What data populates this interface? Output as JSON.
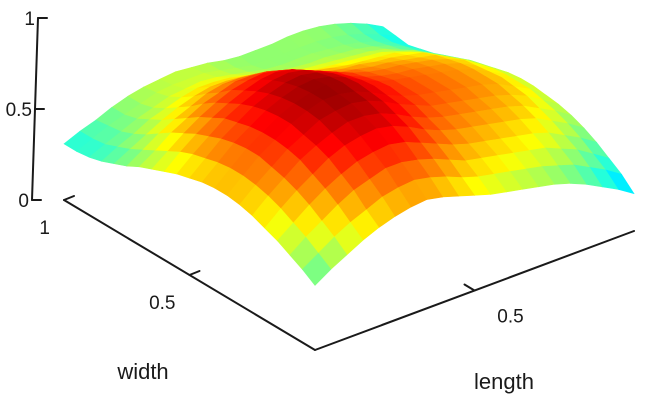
{
  "chart_data": {
    "type": "surface",
    "title": "",
    "xlabel": "length",
    "ylabel": "width",
    "zlabel": "",
    "xlim": [
      0,
      1
    ],
    "ylim": [
      0,
      1
    ],
    "zlim": [
      0,
      1
    ],
    "x_ticks": [
      {
        "value": 0.5,
        "label": "0.5"
      }
    ],
    "y_ticks": [
      {
        "value": 0.5,
        "label": "0.5"
      },
      {
        "value": 1,
        "label": "1"
      }
    ],
    "z_ticks": [
      {
        "value": 0,
        "label": "0"
      },
      {
        "value": 0.5,
        "label": "0.5"
      },
      {
        "value": 1,
        "label": "1"
      }
    ],
    "colormap": "jet",
    "grid": false,
    "surface": {
      "x": [
        0,
        0.05,
        0.1,
        0.15,
        0.2,
        0.25,
        0.3,
        0.35,
        0.4,
        0.45,
        0.5,
        0.55,
        0.6,
        0.65,
        0.7,
        0.75,
        0.8,
        0.85,
        0.9,
        0.95,
        1
      ],
      "y": [
        0,
        0.05,
        0.1,
        0.15,
        0.2,
        0.25,
        0.3,
        0.35,
        0.4,
        0.45,
        0.5,
        0.55,
        0.6,
        0.65,
        0.7,
        0.75,
        0.8,
        0.85,
        0.9,
        0.95,
        1
      ],
      "z": [
        [
          0.38,
          0.44,
          0.49,
          0.54,
          0.58,
          0.61,
          0.63,
          0.64,
          0.62,
          0.59,
          0.56,
          0.53,
          0.51,
          0.49,
          0.47,
          0.45,
          0.42,
          0.38,
          0.33,
          0.28,
          0.22
        ],
        [
          0.43,
          0.49,
          0.55,
          0.6,
          0.64,
          0.68,
          0.7,
          0.71,
          0.69,
          0.66,
          0.62,
          0.59,
          0.57,
          0.55,
          0.53,
          0.51,
          0.48,
          0.45,
          0.4,
          0.35,
          0.29
        ],
        [
          0.47,
          0.54,
          0.6,
          0.66,
          0.71,
          0.74,
          0.77,
          0.77,
          0.75,
          0.72,
          0.68,
          0.64,
          0.62,
          0.6,
          0.58,
          0.56,
          0.54,
          0.5,
          0.46,
          0.4,
          0.34
        ],
        [
          0.51,
          0.58,
          0.65,
          0.71,
          0.76,
          0.8,
          0.82,
          0.83,
          0.81,
          0.77,
          0.73,
          0.69,
          0.66,
          0.64,
          0.62,
          0.6,
          0.58,
          0.55,
          0.5,
          0.45,
          0.39
        ],
        [
          0.54,
          0.62,
          0.69,
          0.75,
          0.81,
          0.85,
          0.87,
          0.88,
          0.86,
          0.82,
          0.77,
          0.73,
          0.7,
          0.68,
          0.66,
          0.64,
          0.62,
          0.59,
          0.54,
          0.49,
          0.43
        ],
        [
          0.57,
          0.65,
          0.72,
          0.79,
          0.84,
          0.88,
          0.91,
          0.91,
          0.89,
          0.85,
          0.8,
          0.76,
          0.73,
          0.71,
          0.69,
          0.67,
          0.65,
          0.62,
          0.57,
          0.52,
          0.46
        ],
        [
          0.59,
          0.67,
          0.74,
          0.81,
          0.86,
          0.91,
          0.93,
          0.94,
          0.92,
          0.88,
          0.83,
          0.79,
          0.75,
          0.73,
          0.71,
          0.69,
          0.67,
          0.64,
          0.6,
          0.54,
          0.48
        ],
        [
          0.6,
          0.68,
          0.76,
          0.82,
          0.88,
          0.92,
          0.95,
          0.95,
          0.93,
          0.89,
          0.84,
          0.8,
          0.77,
          0.75,
          0.73,
          0.71,
          0.69,
          0.66,
          0.61,
          0.56,
          0.49
        ],
        [
          0.6,
          0.68,
          0.76,
          0.82,
          0.88,
          0.92,
          0.95,
          0.96,
          0.94,
          0.9,
          0.85,
          0.81,
          0.77,
          0.75,
          0.73,
          0.71,
          0.69,
          0.66,
          0.62,
          0.56,
          0.5
        ],
        [
          0.59,
          0.67,
          0.75,
          0.81,
          0.87,
          0.91,
          0.94,
          0.95,
          0.93,
          0.89,
          0.84,
          0.8,
          0.77,
          0.75,
          0.73,
          0.71,
          0.69,
          0.66,
          0.61,
          0.56,
          0.5
        ],
        [
          0.57,
          0.65,
          0.73,
          0.79,
          0.85,
          0.89,
          0.92,
          0.93,
          0.91,
          0.87,
          0.82,
          0.78,
          0.75,
          0.73,
          0.72,
          0.7,
          0.68,
          0.65,
          0.6,
          0.55,
          0.49
        ],
        [
          0.55,
          0.63,
          0.7,
          0.77,
          0.82,
          0.86,
          0.89,
          0.9,
          0.88,
          0.84,
          0.8,
          0.76,
          0.73,
          0.71,
          0.7,
          0.68,
          0.66,
          0.63,
          0.59,
          0.53,
          0.47
        ],
        [
          0.52,
          0.6,
          0.67,
          0.73,
          0.78,
          0.82,
          0.85,
          0.86,
          0.84,
          0.8,
          0.76,
          0.72,
          0.7,
          0.68,
          0.67,
          0.65,
          0.63,
          0.61,
          0.56,
          0.51,
          0.45
        ],
        [
          0.49,
          0.56,
          0.63,
          0.69,
          0.74,
          0.78,
          0.8,
          0.81,
          0.79,
          0.76,
          0.72,
          0.68,
          0.66,
          0.65,
          0.63,
          0.62,
          0.6,
          0.58,
          0.53,
          0.48,
          0.43
        ],
        [
          0.46,
          0.52,
          0.59,
          0.64,
          0.69,
          0.72,
          0.75,
          0.75,
          0.74,
          0.71,
          0.67,
          0.64,
          0.62,
          0.6,
          0.59,
          0.58,
          0.57,
          0.54,
          0.5,
          0.45,
          0.4
        ],
        [
          0.42,
          0.48,
          0.54,
          0.59,
          0.63,
          0.67,
          0.69,
          0.69,
          0.68,
          0.65,
          0.62,
          0.59,
          0.57,
          0.56,
          0.55,
          0.54,
          0.53,
          0.5,
          0.47,
          0.42,
          0.37
        ],
        [
          0.39,
          0.44,
          0.49,
          0.54,
          0.58,
          0.61,
          0.63,
          0.63,
          0.62,
          0.6,
          0.57,
          0.54,
          0.53,
          0.52,
          0.51,
          0.5,
          0.49,
          0.47,
          0.43,
          0.39,
          0.34
        ],
        [
          0.36,
          0.41,
          0.45,
          0.5,
          0.53,
          0.56,
          0.58,
          0.58,
          0.57,
          0.55,
          0.52,
          0.5,
          0.49,
          0.48,
          0.48,
          0.47,
          0.46,
          0.44,
          0.41,
          0.37,
          0.32
        ],
        [
          0.34,
          0.38,
          0.42,
          0.46,
          0.49,
          0.52,
          0.53,
          0.54,
          0.53,
          0.51,
          0.49,
          0.47,
          0.46,
          0.46,
          0.46,
          0.45,
          0.44,
          0.42,
          0.39,
          0.35,
          0.3
        ],
        [
          0.33,
          0.37,
          0.41,
          0.44,
          0.47,
          0.5,
          0.51,
          0.51,
          0.51,
          0.49,
          0.47,
          0.45,
          0.45,
          0.45,
          0.45,
          0.45,
          0.44,
          0.42,
          0.39,
          0.35,
          0.31
        ],
        [
          0.33,
          0.37,
          0.4,
          0.44,
          0.47,
          0.49,
          0.5,
          0.51,
          0.5,
          0.49,
          0.47,
          0.46,
          0.46,
          0.46,
          0.47,
          0.47,
          0.46,
          0.44,
          0.41,
          0.37,
          0.32
        ]
      ]
    }
  }
}
